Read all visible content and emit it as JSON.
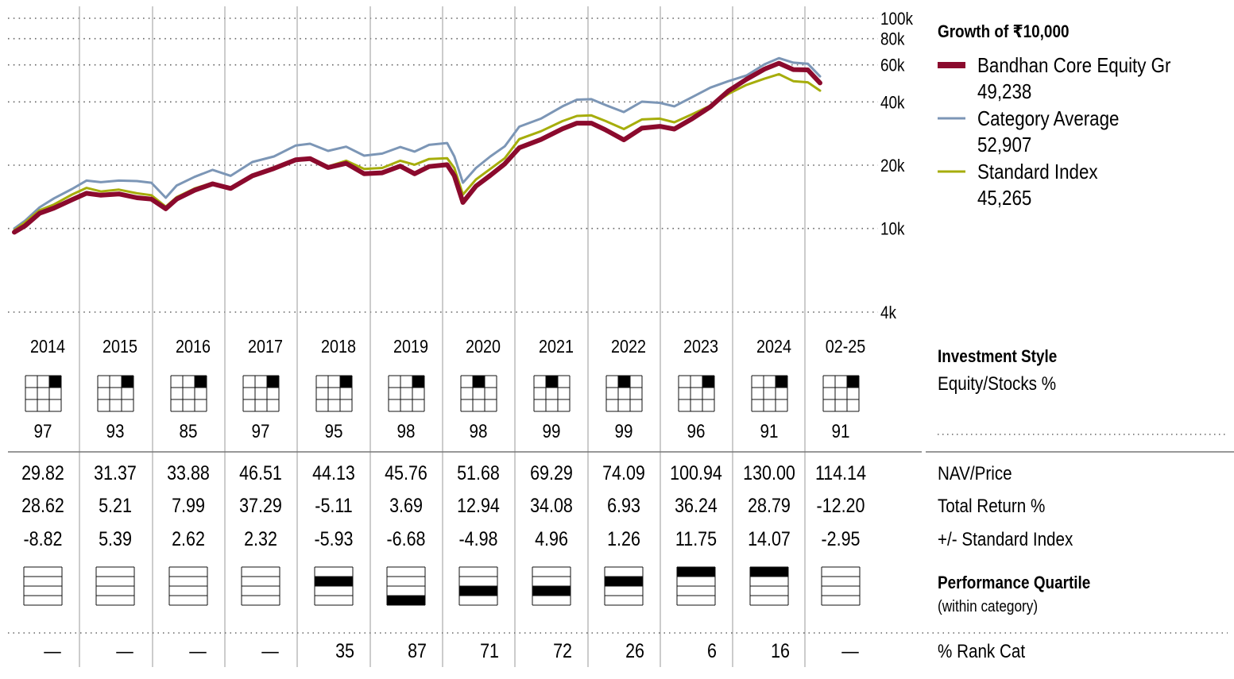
{
  "legend": {
    "title": "Growth of  ₹10,000",
    "items": [
      {
        "name": "Bandhan Core Equity Gr",
        "value": "49,238",
        "color": "#8b0a2d"
      },
      {
        "name": "Category Average",
        "value": "52,907",
        "color": "#7c96b6"
      },
      {
        "name": "Standard Index",
        "value": "45,265",
        "color": "#a6ad0b"
      }
    ]
  },
  "chart_data": {
    "type": "line",
    "title": "Growth of  ₹10,000",
    "scale": "log",
    "ylim": [
      4000,
      100000
    ],
    "y_ticks": [
      {
        "value": 100000,
        "label": "100k"
      },
      {
        "value": 80000,
        "label": "80k"
      },
      {
        "value": 60000,
        "label": "60k"
      },
      {
        "value": 40000,
        "label": "40k"
      },
      {
        "value": 20000,
        "label": "20k"
      },
      {
        "value": 10000,
        "label": "10k"
      },
      {
        "value": 4000,
        "label": "4k"
      }
    ],
    "x_range": [
      2014.0,
      2025.17
    ],
    "x_labels": [
      "2014",
      "2015",
      "2016",
      "2017",
      "2018",
      "2019",
      "2020",
      "2021",
      "2022",
      "2023",
      "2024",
      "02-25"
    ],
    "series": [
      {
        "name": "Category Average",
        "color": "#7c96b6",
        "points": [
          [
            2014.0,
            10000
          ],
          [
            2014.15,
            10900
          ],
          [
            2014.35,
            12600
          ],
          [
            2014.55,
            13900
          ],
          [
            2014.8,
            15400
          ],
          [
            2015.0,
            16900
          ],
          [
            2015.2,
            16600
          ],
          [
            2015.45,
            16900
          ],
          [
            2015.7,
            16800
          ],
          [
            2015.9,
            16500
          ],
          [
            2016.1,
            14000
          ],
          [
            2016.25,
            16000
          ],
          [
            2016.5,
            17600
          ],
          [
            2016.75,
            19000
          ],
          [
            2017.0,
            17800
          ],
          [
            2017.3,
            20700
          ],
          [
            2017.6,
            22000
          ],
          [
            2017.9,
            24800
          ],
          [
            2018.1,
            25300
          ],
          [
            2018.35,
            23400
          ],
          [
            2018.6,
            24500
          ],
          [
            2018.85,
            22200
          ],
          [
            2019.1,
            22700
          ],
          [
            2019.35,
            24400
          ],
          [
            2019.55,
            23200
          ],
          [
            2019.75,
            25000
          ],
          [
            2020.0,
            25500
          ],
          [
            2020.1,
            22000
          ],
          [
            2020.22,
            16500
          ],
          [
            2020.4,
            19400
          ],
          [
            2020.6,
            22000
          ],
          [
            2020.8,
            24600
          ],
          [
            2021.0,
            30500
          ],
          [
            2021.3,
            33300
          ],
          [
            2021.6,
            38100
          ],
          [
            2021.8,
            41000
          ],
          [
            2022.0,
            41200
          ],
          [
            2022.2,
            38600
          ],
          [
            2022.45,
            35800
          ],
          [
            2022.7,
            40100
          ],
          [
            2022.95,
            39600
          ],
          [
            2023.15,
            38100
          ],
          [
            2023.4,
            42200
          ],
          [
            2023.65,
            46800
          ],
          [
            2023.9,
            50200
          ],
          [
            2024.15,
            53400
          ],
          [
            2024.4,
            60400
          ],
          [
            2024.6,
            64600
          ],
          [
            2024.8,
            61500
          ],
          [
            2025.0,
            60800
          ],
          [
            2025.17,
            52907
          ]
        ]
      },
      {
        "name": "Standard Index",
        "color": "#a6ad0b",
        "points": [
          [
            2014.0,
            9800
          ],
          [
            2014.15,
            10700
          ],
          [
            2014.35,
            12200
          ],
          [
            2014.55,
            13000
          ],
          [
            2014.8,
            14500
          ],
          [
            2015.0,
            15600
          ],
          [
            2015.2,
            15000
          ],
          [
            2015.45,
            15300
          ],
          [
            2015.7,
            14700
          ],
          [
            2015.9,
            14400
          ],
          [
            2016.1,
            12700
          ],
          [
            2016.25,
            14100
          ],
          [
            2016.5,
            15500
          ],
          [
            2016.75,
            16500
          ],
          [
            2017.0,
            15600
          ],
          [
            2017.3,
            18000
          ],
          [
            2017.6,
            19200
          ],
          [
            2017.9,
            21000
          ],
          [
            2018.1,
            21300
          ],
          [
            2018.35,
            19700
          ],
          [
            2018.6,
            21000
          ],
          [
            2018.85,
            19200
          ],
          [
            2019.1,
            19400
          ],
          [
            2019.35,
            21000
          ],
          [
            2019.55,
            20100
          ],
          [
            2019.75,
            21400
          ],
          [
            2020.0,
            21600
          ],
          [
            2020.1,
            19400
          ],
          [
            2020.22,
            14500
          ],
          [
            2020.4,
            17100
          ],
          [
            2020.6,
            19200
          ],
          [
            2020.8,
            21600
          ],
          [
            2021.0,
            26600
          ],
          [
            2021.3,
            29000
          ],
          [
            2021.6,
            32400
          ],
          [
            2021.8,
            34300
          ],
          [
            2022.0,
            34500
          ],
          [
            2022.2,
            32400
          ],
          [
            2022.45,
            29700
          ],
          [
            2022.7,
            33000
          ],
          [
            2022.95,
            33300
          ],
          [
            2023.15,
            32000
          ],
          [
            2023.4,
            35000
          ],
          [
            2023.65,
            38400
          ],
          [
            2023.9,
            43700
          ],
          [
            2024.15,
            48200
          ],
          [
            2024.4,
            51600
          ],
          [
            2024.6,
            54200
          ],
          [
            2024.8,
            50200
          ],
          [
            2025.0,
            49600
          ],
          [
            2025.17,
            45265
          ]
        ]
      },
      {
        "name": "Bandhan Core Equity Gr",
        "color": "#8b0a2d",
        "points": [
          [
            2014.0,
            9600
          ],
          [
            2014.15,
            10300
          ],
          [
            2014.35,
            11800
          ],
          [
            2014.55,
            12500
          ],
          [
            2014.8,
            13700
          ],
          [
            2015.0,
            14700
          ],
          [
            2015.2,
            14400
          ],
          [
            2015.45,
            14600
          ],
          [
            2015.7,
            14000
          ],
          [
            2015.9,
            13800
          ],
          [
            2016.1,
            12400
          ],
          [
            2016.25,
            13800
          ],
          [
            2016.5,
            15200
          ],
          [
            2016.75,
            16300
          ],
          [
            2017.0,
            15500
          ],
          [
            2017.3,
            17800
          ],
          [
            2017.6,
            19300
          ],
          [
            2017.9,
            21200
          ],
          [
            2018.1,
            21500
          ],
          [
            2018.35,
            19500
          ],
          [
            2018.6,
            20400
          ],
          [
            2018.85,
            18200
          ],
          [
            2019.1,
            18400
          ],
          [
            2019.35,
            19800
          ],
          [
            2019.55,
            18200
          ],
          [
            2019.75,
            19700
          ],
          [
            2020.0,
            20100
          ],
          [
            2020.1,
            17800
          ],
          [
            2020.22,
            13300
          ],
          [
            2020.4,
            15900
          ],
          [
            2020.6,
            17900
          ],
          [
            2020.8,
            20300
          ],
          [
            2021.0,
            24200
          ],
          [
            2021.3,
            26500
          ],
          [
            2021.6,
            29800
          ],
          [
            2021.8,
            31700
          ],
          [
            2022.0,
            31700
          ],
          [
            2022.2,
            29400
          ],
          [
            2022.45,
            26400
          ],
          [
            2022.7,
            30000
          ],
          [
            2022.95,
            30600
          ],
          [
            2023.15,
            29700
          ],
          [
            2023.4,
            33300
          ],
          [
            2023.65,
            37900
          ],
          [
            2023.9,
            45100
          ],
          [
            2024.15,
            51200
          ],
          [
            2024.4,
            57300
          ],
          [
            2024.6,
            61100
          ],
          [
            2024.8,
            57000
          ],
          [
            2025.0,
            56800
          ],
          [
            2025.17,
            49238
          ]
        ]
      }
    ]
  },
  "style": {
    "title": "Investment Style",
    "subtitle": "Equity/Stocks %",
    "boxes": [
      {
        "row": 0,
        "col": 2
      },
      {
        "row": 0,
        "col": 2
      },
      {
        "row": 0,
        "col": 2
      },
      {
        "row": 0,
        "col": 2
      },
      {
        "row": 0,
        "col": 2
      },
      {
        "row": 0,
        "col": 2
      },
      {
        "row": 0,
        "col": 1
      },
      {
        "row": 0,
        "col": 1
      },
      {
        "row": 0,
        "col": 1
      },
      {
        "row": 0,
        "col": 2
      },
      {
        "row": 0,
        "col": 2
      },
      {
        "row": 0,
        "col": 2
      }
    ],
    "equity_pct": [
      "97",
      "93",
      "85",
      "97",
      "95",
      "98",
      "98",
      "99",
      "99",
      "96",
      "91",
      "91"
    ]
  },
  "table": {
    "rows": [
      {
        "label": "NAV/Price",
        "values": [
          "29.82",
          "31.37",
          "33.88",
          "46.51",
          "44.13",
          "45.76",
          "51.68",
          "69.29",
          "74.09",
          "100.94",
          "130.00",
          "114.14"
        ]
      },
      {
        "label": "Total Return %",
        "values": [
          "28.62",
          "5.21",
          "7.99",
          "37.29",
          "-5.11",
          "3.69",
          "12.94",
          "34.08",
          "6.93",
          "36.24",
          "28.79",
          "-12.20"
        ]
      },
      {
        "label": "+/- Standard Index",
        "values": [
          "-8.82",
          "5.39",
          "2.62",
          "2.32",
          "-5.93",
          "-6.68",
          "-4.98",
          "4.96",
          "1.26",
          "11.75",
          "14.07",
          "-2.95"
        ]
      }
    ]
  },
  "quartile": {
    "title": "Performance Quartile",
    "subtitle": "(within category)",
    "values": [
      0,
      0,
      0,
      0,
      2,
      4,
      3,
      3,
      2,
      1,
      1,
      0
    ]
  },
  "rank": {
    "label": "% Rank Cat",
    "values": [
      "—",
      "—",
      "—",
      "—",
      "35",
      "87",
      "71",
      "72",
      "26",
      "6",
      "16",
      "—"
    ]
  }
}
